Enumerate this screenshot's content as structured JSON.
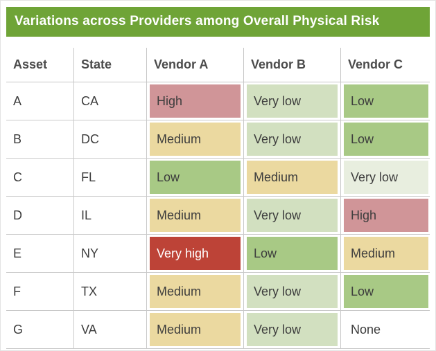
{
  "title": "Variations across Providers among Overall Physical Risk",
  "colors": {
    "title_bg": "#6fa437",
    "title_text": "#ffffff",
    "header_text": "#4b4b4b",
    "body_text": "#3d3d3d",
    "grid_line": "#c9c9c9",
    "very_high_text": "#ffffff"
  },
  "palette": {
    "very-high": "#bd4337",
    "high": "#d09598",
    "medium": "#ebd9a0",
    "low": "#a8c985",
    "very-low": "#d2e0c0",
    "very-low-pale": "#e8eedf",
    "none": "#ffffff"
  },
  "table": {
    "columns": [
      "Asset",
      "State",
      "Vendor A",
      "Vendor B",
      "Vendor C"
    ],
    "rows": [
      {
        "asset": "A",
        "state": "CA",
        "vendors": [
          {
            "label": "High",
            "level": "high"
          },
          {
            "label": "Very low",
            "level": "very-low"
          },
          {
            "label": "Low",
            "level": "low"
          }
        ]
      },
      {
        "asset": "B",
        "state": "DC",
        "vendors": [
          {
            "label": "Medium",
            "level": "medium"
          },
          {
            "label": "Very low",
            "level": "very-low"
          },
          {
            "label": "Low",
            "level": "low"
          }
        ]
      },
      {
        "asset": "C",
        "state": "FL",
        "vendors": [
          {
            "label": "Low",
            "level": "low"
          },
          {
            "label": "Medium",
            "level": "medium"
          },
          {
            "label": "Very low",
            "level": "very-low-pale"
          }
        ]
      },
      {
        "asset": "D",
        "state": "IL",
        "vendors": [
          {
            "label": "Medium",
            "level": "medium"
          },
          {
            "label": "Very low",
            "level": "very-low"
          },
          {
            "label": "High",
            "level": "high"
          }
        ]
      },
      {
        "asset": "E",
        "state": "NY",
        "vendors": [
          {
            "label": "Very high",
            "level": "very-high"
          },
          {
            "label": "Low",
            "level": "low"
          },
          {
            "label": "Medium",
            "level": "medium"
          }
        ]
      },
      {
        "asset": "F",
        "state": "TX",
        "vendors": [
          {
            "label": "Medium",
            "level": "medium"
          },
          {
            "label": "Very low",
            "level": "very-low"
          },
          {
            "label": "Low",
            "level": "low"
          }
        ]
      },
      {
        "asset": "G",
        "state": "VA",
        "vendors": [
          {
            "label": "Medium",
            "level": "medium"
          },
          {
            "label": "Very low",
            "level": "very-low"
          },
          {
            "label": "None",
            "level": "none"
          }
        ]
      }
    ]
  },
  "chart_data": {
    "type": "heatmap",
    "title": "Variations across Providers among Overall Physical Risk",
    "columns": [
      "Asset",
      "State",
      "Vendor A",
      "Vendor B",
      "Vendor C"
    ],
    "rows": [
      [
        "A",
        "CA",
        "High",
        "Very low",
        "Low"
      ],
      [
        "B",
        "DC",
        "Medium",
        "Very low",
        "Low"
      ],
      [
        "C",
        "FL",
        "Low",
        "Medium",
        "Very low"
      ],
      [
        "D",
        "IL",
        "Medium",
        "Very low",
        "High"
      ],
      [
        "E",
        "NY",
        "Very high",
        "Low",
        "Medium"
      ],
      [
        "F",
        "TX",
        "Medium",
        "Very low",
        "Low"
      ],
      [
        "G",
        "VA",
        "Medium",
        "Very low",
        "None"
      ]
    ],
    "scale": [
      "None",
      "Very low",
      "Low",
      "Medium",
      "High",
      "Very high"
    ],
    "legend_position": "none",
    "grid": true
  }
}
